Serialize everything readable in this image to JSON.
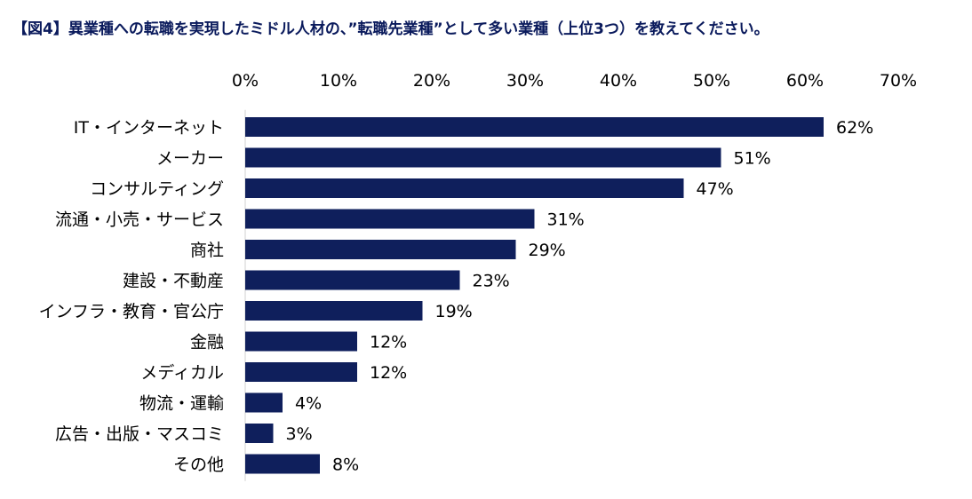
{
  "chart_data": {
    "type": "bar",
    "orientation": "horizontal",
    "title": "【図4】異業種への転職を実現したミドル人材の、”転職先業種”として多い業種（上位3つ）を教えてください。",
    "categories": [
      "IT・インターネット",
      "メーカー",
      "コンサルティング",
      "流通・小売・サービス",
      "商社",
      "建設・不動産",
      "インフラ・教育・官公庁",
      "金融",
      "メディカル",
      "物流・運輸",
      "広告・出版・マスコミ",
      "その他"
    ],
    "values": [
      62,
      51,
      47,
      31,
      29,
      23,
      19,
      12,
      12,
      4,
      3,
      8
    ],
    "value_labels": [
      "62%",
      "51%",
      "47%",
      "31%",
      "29%",
      "23%",
      "19%",
      "12%",
      "12%",
      "4%",
      "3%",
      "8%"
    ],
    "xlim": [
      0,
      70
    ],
    "x_ticks": [
      "0%",
      "10%",
      "20%",
      "30%",
      "40%",
      "50%",
      "60%",
      "70%"
    ],
    "x_axis_position": "top",
    "grid": false,
    "bar_color": "#0f1f5c"
  }
}
